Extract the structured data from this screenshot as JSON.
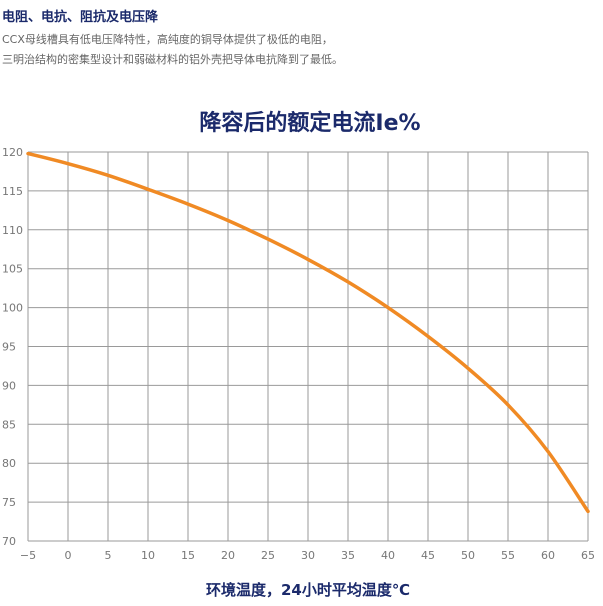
{
  "intro": {
    "heading": "电阻、电抗、阻抗及电压降",
    "line1": "CCX母线槽具有低电压降特性，高纯度的铜导体提供了极低的电阻，",
    "line2": "三明治结构的密集型设计和弱磁材料的铝外壳把导体电抗降到了最低。"
  },
  "chart_data": {
    "type": "line",
    "title": "降容后的额定电流Ie%",
    "xlabel": "环境温度，24小时平均温度℃",
    "ylabel": "",
    "xlim": [
      -5,
      65
    ],
    "ylim": [
      70,
      120
    ],
    "x_ticks": [
      -5,
      0,
      5,
      10,
      15,
      20,
      25,
      30,
      35,
      40,
      45,
      50,
      55,
      60,
      65
    ],
    "y_ticks": [
      70,
      75,
      80,
      85,
      90,
      95,
      100,
      105,
      110,
      115,
      120
    ],
    "grid": true,
    "line_color": "#f08a24",
    "series": [
      {
        "x": [
          -5,
          0,
          5,
          10,
          15,
          20,
          25,
          30,
          35,
          40,
          45,
          50,
          55,
          60,
          65
        ],
        "values": [
          119.8,
          118.5,
          117.0,
          115.2,
          113.3,
          111.2,
          108.8,
          106.2,
          103.3,
          100.0,
          96.3,
          92.2,
          87.5,
          81.5,
          73.8
        ]
      }
    ]
  }
}
